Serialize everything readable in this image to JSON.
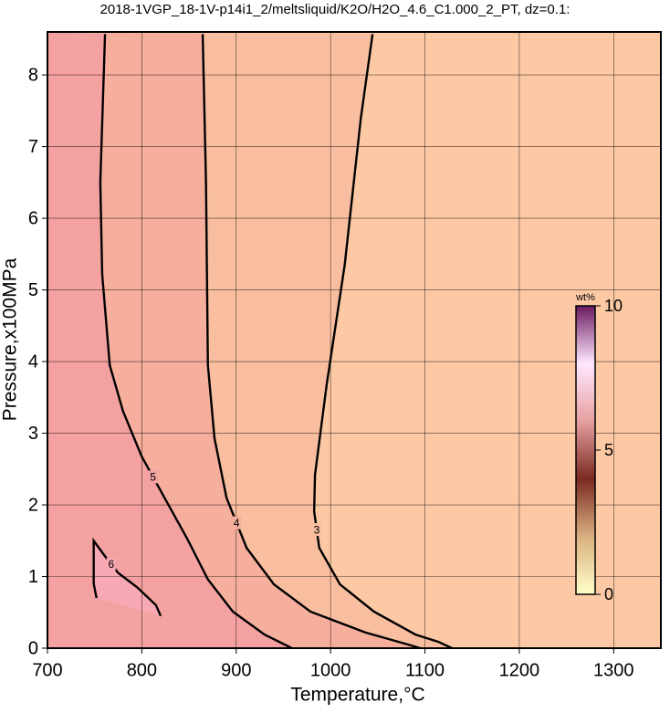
{
  "chart_data": {
    "type": "contour",
    "title": "2018-1VGP_18-1V-p14i1_2/meltsliquid/K2O/H2O_4.6_C1.000_2_PT, dz=0.1:",
    "x_label": "Temperature,°C",
    "y_label": "Pressure,x100MPa",
    "xlim": [
      700,
      1350
    ],
    "xticks": [
      700,
      800,
      900,
      1000,
      1100,
      1200,
      1300
    ],
    "ylim": [
      0,
      8.6
    ],
    "yticks": [
      0,
      1,
      2,
      3,
      4,
      5,
      6,
      7,
      8
    ],
    "grid": true,
    "background": "#fcc9a4",
    "series": [
      {
        "level": 3,
        "fill": "#f9bea0",
        "x": [
          1044.5,
          1032,
          1015,
          996,
          983.5,
          982.6,
          988,
          1010,
          1046,
          1090,
          1114,
          1128.7
        ],
        "y": [
          8.57,
          7.39,
          5.35,
          3.69,
          2.42,
          1.91,
          1.4,
          0.89,
          0.51,
          0.19,
          0.09,
          0
        ]
      },
      {
        "level": 4,
        "fill": "#f6ae9d",
        "x": [
          864.5,
          868,
          870,
          877,
          889.7,
          911,
          940,
          978.7,
          1036.8,
          1085,
          1095
        ],
        "y": [
          8.57,
          6.5,
          3.95,
          2.93,
          2.1,
          1.4,
          0.89,
          0.51,
          0.22,
          0.04,
          0
        ]
      },
      {
        "level": 5,
        "fill": "#f4a1a1",
        "x": [
          761,
          756,
          758,
          766,
          780,
          799.7,
          824,
          848,
          870,
          896.5,
          930,
          959
        ],
        "y": [
          8.57,
          6.5,
          5.22,
          3.95,
          3.31,
          2.68,
          2.1,
          1.53,
          0.96,
          0.51,
          0.19,
          0
        ]
      },
      {
        "level": 6,
        "fill": "#f8a9b4",
        "x": [
          752,
          749,
          749,
          760,
          775,
          795,
          815,
          820
        ],
        "y": [
          0.7,
          0.9,
          1.5,
          1.3,
          1.05,
          0.85,
          0.6,
          0.45
        ]
      }
    ],
    "colorbar": {
      "label": "wt%",
      "lim": [
        0,
        10
      ],
      "ticks": [
        0,
        5,
        10
      ],
      "colors": [
        "#ffffc8",
        "#d8b080",
        "#7a2a22",
        "#e6a0a0",
        "#ffe8ff",
        "#6a1a60"
      ]
    }
  }
}
